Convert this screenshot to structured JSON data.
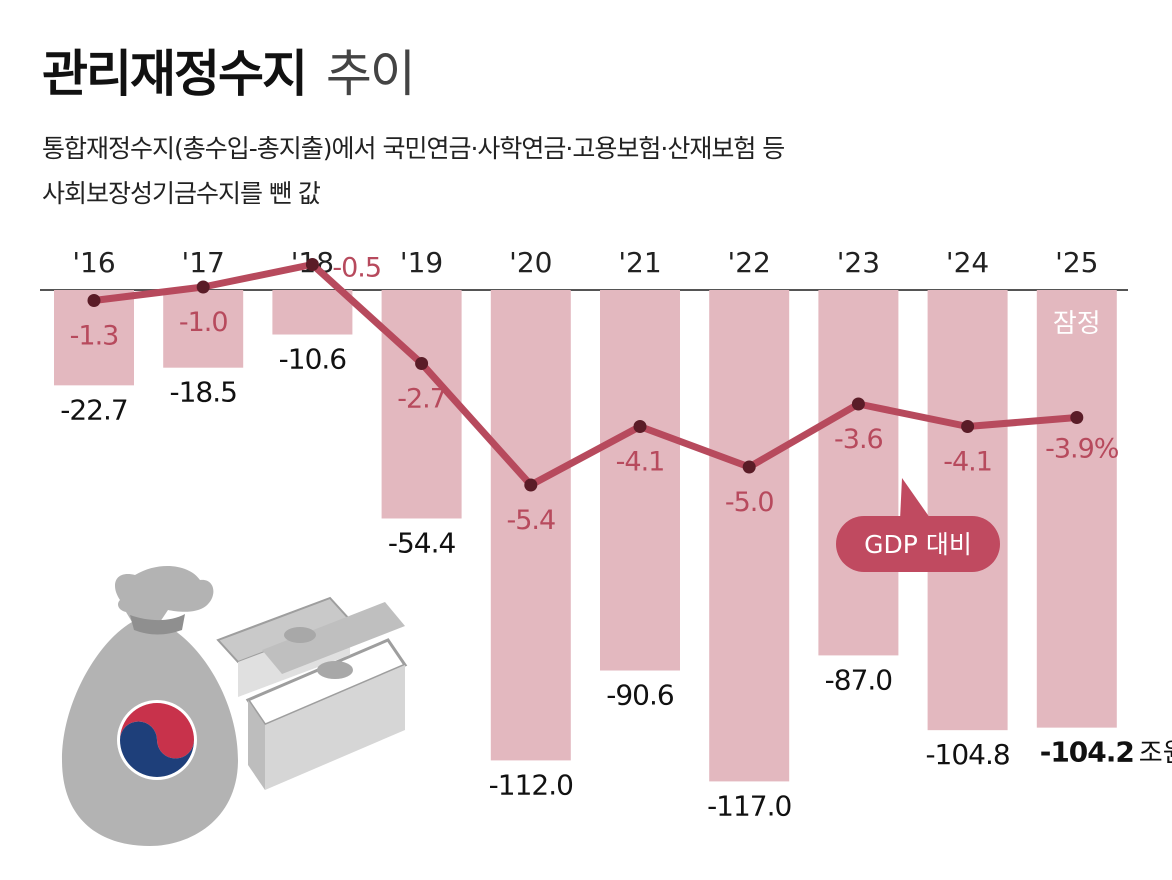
{
  "header": {
    "title_bold": "관리재정수지",
    "title_light": "추이",
    "subtitle_line1": "통합재정수지(총수입-총지출)에서 국민연금·사학연금·고용보험·산재보험 등",
    "subtitle_line2": "사회보장성기금수지를 뺀 값"
  },
  "chart_data": {
    "type": "bar",
    "categories": [
      "'16",
      "'17",
      "'18",
      "'19",
      "'20",
      "'21",
      "'22",
      "'23",
      "'24",
      "'25"
    ],
    "values": [
      -22.7,
      -18.5,
      -10.6,
      -54.4,
      -112.0,
      -90.6,
      -117.0,
      -87.0,
      -104.8,
      -104.2
    ],
    "value_labels": [
      "-22.7",
      "-18.5",
      "-10.6",
      "-54.4",
      "-112.0",
      "-90.6",
      "-117.0",
      "-87.0",
      "-104.8",
      "-104.2"
    ],
    "unit": "조원",
    "line_series": {
      "name": "GDP 대비",
      "values": [
        -1.3,
        -1.0,
        -0.5,
        -2.7,
        -5.4,
        -4.1,
        -5.0,
        -3.6,
        -4.1,
        -3.9
      ],
      "labels": [
        "-1.3",
        "-1.0",
        "-0.5",
        "-2.7",
        "-5.4",
        "-4.1",
        "-5.0",
        "-3.6",
        "-4.1",
        "-3.9%"
      ]
    },
    "bar_note": "잠정",
    "colors": {
      "bar": "#e3b8bf",
      "line": "#b74a5d",
      "callout": "#c04a60"
    }
  }
}
